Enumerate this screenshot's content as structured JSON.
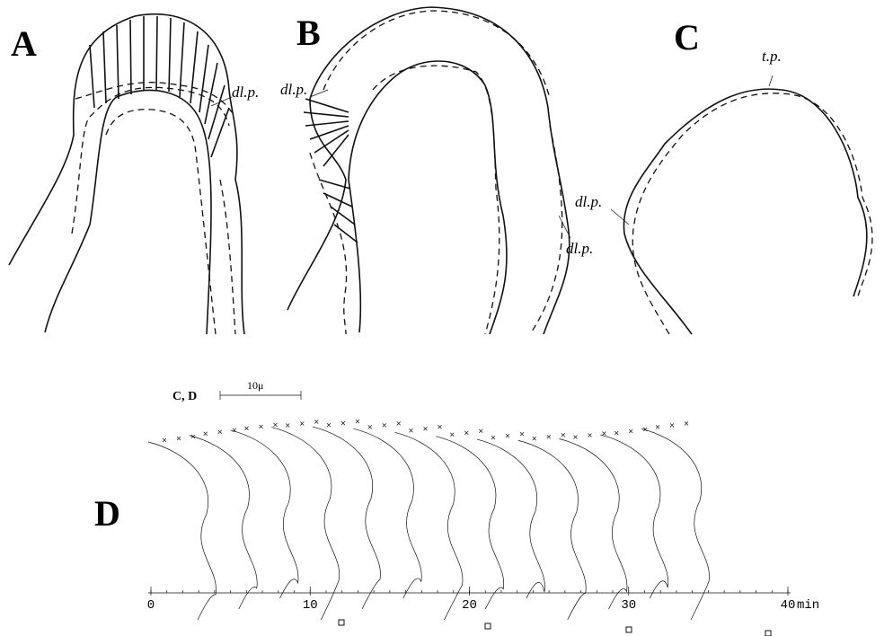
{
  "panels": {
    "a": {
      "label": "A"
    },
    "b": {
      "label": "B"
    },
    "c": {
      "label": "C"
    },
    "d": {
      "label": "D"
    }
  },
  "annotations": {
    "a_dlp": "dl.p.",
    "b_dlp": "dl.p.",
    "c_dlp": "dl.p.",
    "c_tp": "t.p."
  },
  "scale_bar": {
    "panels": "C, D",
    "label": "10μ"
  },
  "time_axis": {
    "ticks": [
      0,
      10,
      20,
      30,
      40
    ],
    "unit": "min"
  }
}
